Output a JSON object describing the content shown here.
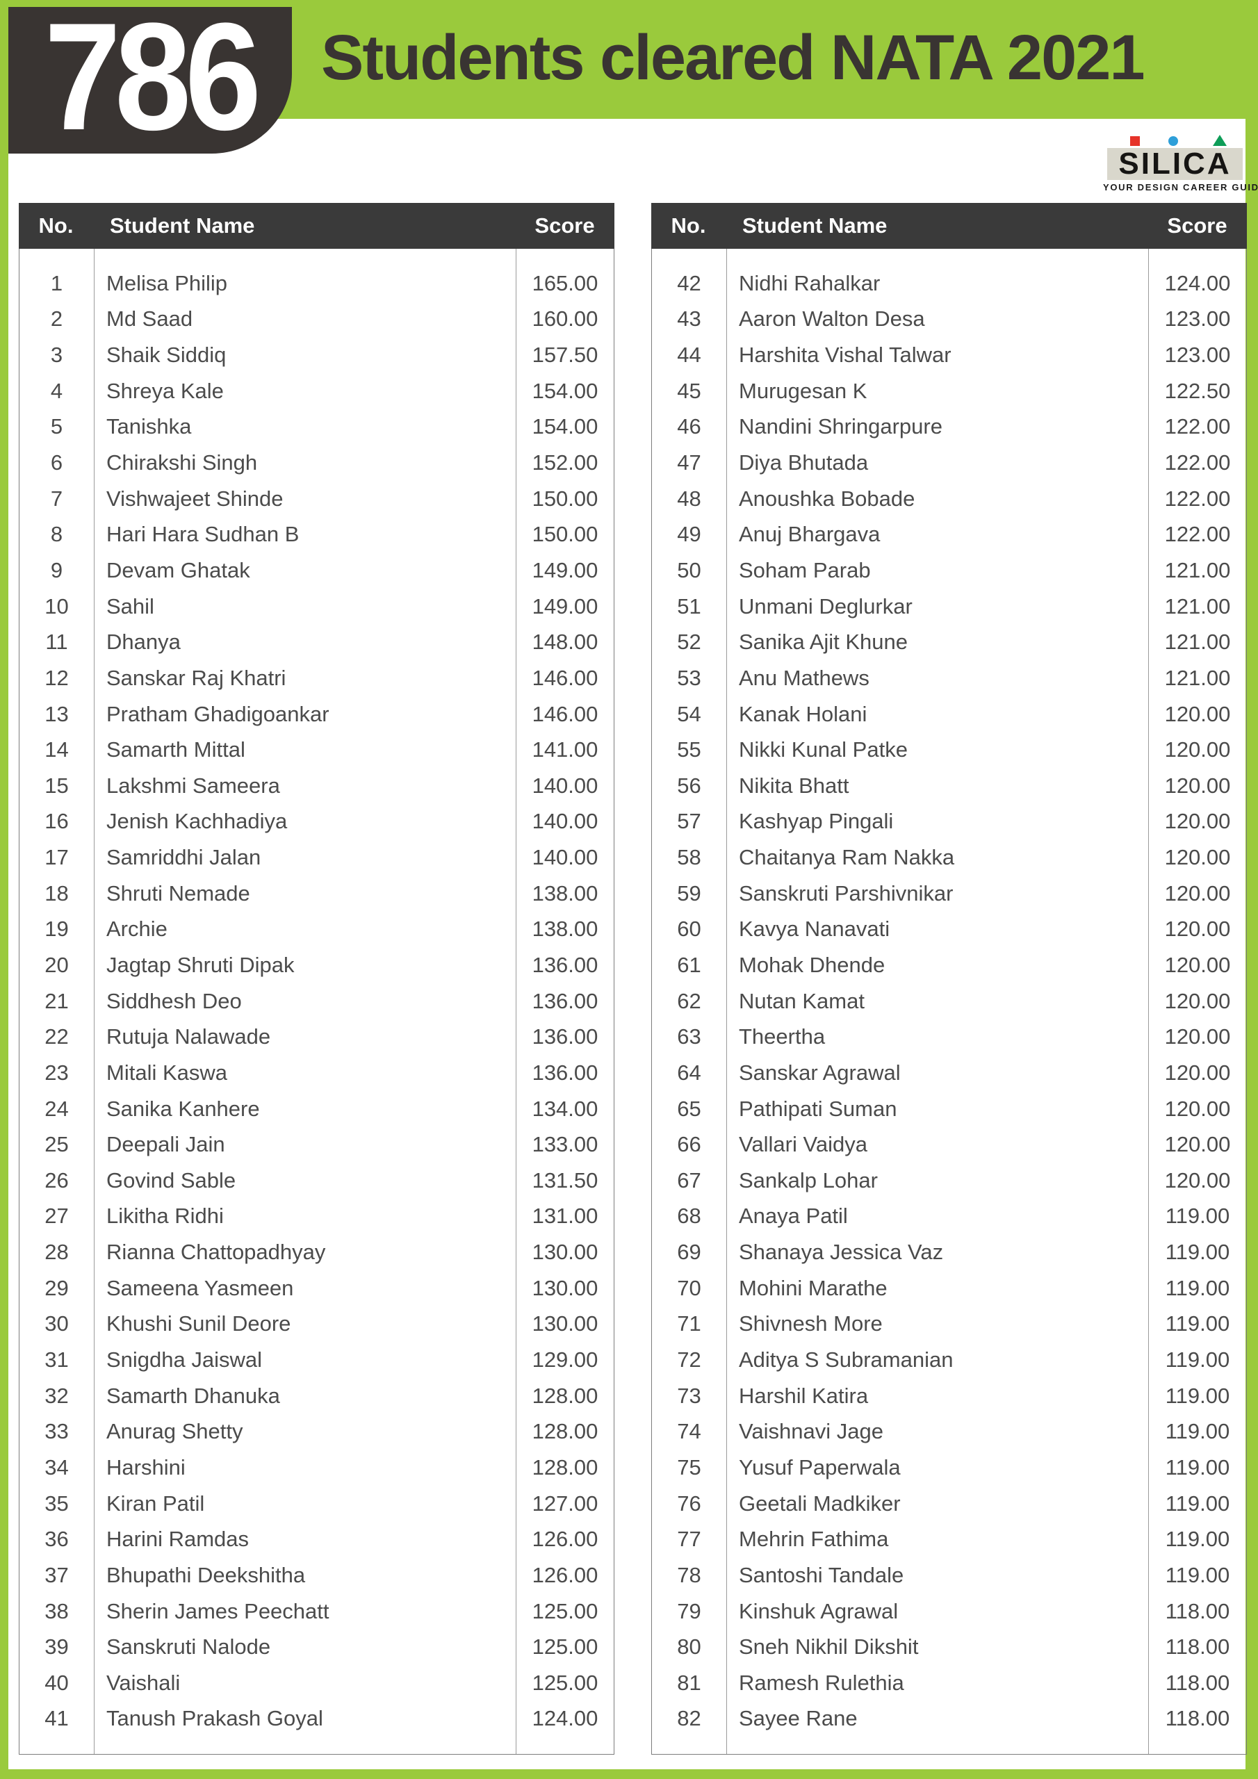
{
  "header": {
    "count": "786",
    "title": "Students cleared NATA 2021"
  },
  "logo": {
    "brand": "SILICA",
    "tagline": "YOUR DESIGN CAREER GUIDE"
  },
  "columns": {
    "no": "No.",
    "name": "Student Name",
    "score": "Score"
  },
  "colors": {
    "banner_green": "#9ACA3C",
    "badge_dark": "#393432",
    "table_header": "#3A3A3A",
    "logo_red": "#E63329",
    "logo_blue": "#2E9FD9",
    "logo_green": "#0E9D58"
  },
  "left_rows": [
    {
      "no": "1",
      "name": "Melisa Philip",
      "score": "165.00"
    },
    {
      "no": "2",
      "name": "Md Saad",
      "score": "160.00"
    },
    {
      "no": "3",
      "name": "Shaik Siddiq",
      "score": "157.50"
    },
    {
      "no": "4",
      "name": "Shreya Kale",
      "score": "154.00"
    },
    {
      "no": "5",
      "name": "Tanishka",
      "score": "154.00"
    },
    {
      "no": "6",
      "name": "Chirakshi Singh",
      "score": "152.00"
    },
    {
      "no": "7",
      "name": "Vishwajeet Shinde",
      "score": "150.00"
    },
    {
      "no": "8",
      "name": "Hari Hara Sudhan B",
      "score": "150.00"
    },
    {
      "no": "9",
      "name": "Devam Ghatak",
      "score": "149.00"
    },
    {
      "no": "10",
      "name": "Sahil",
      "score": "149.00"
    },
    {
      "no": "11",
      "name": "Dhanya",
      "score": "148.00"
    },
    {
      "no": "12",
      "name": "Sanskar Raj Khatri",
      "score": "146.00"
    },
    {
      "no": "13",
      "name": "Pratham Ghadigoankar",
      "score": "146.00"
    },
    {
      "no": "14",
      "name": "Samarth Mittal",
      "score": "141.00"
    },
    {
      "no": "15",
      "name": "Lakshmi Sameera",
      "score": "140.00"
    },
    {
      "no": "16",
      "name": "Jenish Kachhadiya",
      "score": "140.00"
    },
    {
      "no": "17",
      "name": "Samriddhi Jalan",
      "score": "140.00"
    },
    {
      "no": "18",
      "name": "Shruti Nemade",
      "score": "138.00"
    },
    {
      "no": "19",
      "name": "Archie",
      "score": "138.00"
    },
    {
      "no": "20",
      "name": "Jagtap Shruti Dipak",
      "score": "136.00"
    },
    {
      "no": "21",
      "name": "Siddhesh Deo",
      "score": "136.00"
    },
    {
      "no": "22",
      "name": "Rutuja Nalawade",
      "score": "136.00"
    },
    {
      "no": "23",
      "name": "Mitali Kaswa",
      "score": "136.00"
    },
    {
      "no": "24",
      "name": "Sanika Kanhere",
      "score": "134.00"
    },
    {
      "no": "25",
      "name": "Deepali Jain",
      "score": "133.00"
    },
    {
      "no": "26",
      "name": "Govind Sable",
      "score": "131.50"
    },
    {
      "no": "27",
      "name": "Likitha Ridhi",
      "score": "131.00"
    },
    {
      "no": "28",
      "name": "Rianna Chattopadhyay",
      "score": "130.00"
    },
    {
      "no": "29",
      "name": "Sameena Yasmeen",
      "score": "130.00"
    },
    {
      "no": "30",
      "name": "Khushi Sunil Deore",
      "score": "130.00"
    },
    {
      "no": "31",
      "name": "Snigdha Jaiswal",
      "score": "129.00"
    },
    {
      "no": "32",
      "name": "Samarth Dhanuka",
      "score": "128.00"
    },
    {
      "no": "33",
      "name": "Anurag Shetty",
      "score": "128.00"
    },
    {
      "no": "34",
      "name": "Harshini",
      "score": "128.00"
    },
    {
      "no": "35",
      "name": "Kiran Patil",
      "score": "127.00"
    },
    {
      "no": "36",
      "name": "Harini Ramdas",
      "score": "126.00"
    },
    {
      "no": "37",
      "name": "Bhupathi Deekshitha",
      "score": "126.00"
    },
    {
      "no": "38",
      "name": "Sherin James Peechatt",
      "score": "125.00"
    },
    {
      "no": "39",
      "name": "Sanskruti Nalode",
      "score": "125.00"
    },
    {
      "no": "40",
      "name": "Vaishali",
      "score": "125.00"
    },
    {
      "no": "41",
      "name": "Tanush Prakash Goyal",
      "score": "124.00"
    }
  ],
  "right_rows": [
    {
      "no": "42",
      "name": "Nidhi Rahalkar",
      "score": "124.00"
    },
    {
      "no": "43",
      "name": "Aaron Walton Desa",
      "score": "123.00"
    },
    {
      "no": "44",
      "name": "Harshita Vishal Talwar",
      "score": "123.00"
    },
    {
      "no": "45",
      "name": "Murugesan K",
      "score": "122.50"
    },
    {
      "no": "46",
      "name": "Nandini Shringarpure",
      "score": "122.00"
    },
    {
      "no": "47",
      "name": "Diya Bhutada",
      "score": "122.00"
    },
    {
      "no": "48",
      "name": "Anoushka Bobade",
      "score": "122.00"
    },
    {
      "no": "49",
      "name": "Anuj Bhargava",
      "score": "122.00"
    },
    {
      "no": "50",
      "name": "Soham Parab",
      "score": "121.00"
    },
    {
      "no": "51",
      "name": "Unmani Deglurkar",
      "score": "121.00"
    },
    {
      "no": "52",
      "name": "Sanika Ajit Khune",
      "score": "121.00"
    },
    {
      "no": "53",
      "name": "Anu Mathews",
      "score": "121.00"
    },
    {
      "no": "54",
      "name": "Kanak Holani",
      "score": "120.00"
    },
    {
      "no": "55",
      "name": "Nikki Kunal Patke",
      "score": "120.00"
    },
    {
      "no": "56",
      "name": "Nikita Bhatt",
      "score": "120.00"
    },
    {
      "no": "57",
      "name": "Kashyap Pingali",
      "score": "120.00"
    },
    {
      "no": "58",
      "name": "Chaitanya Ram Nakka",
      "score": "120.00"
    },
    {
      "no": "59",
      "name": "Sanskruti Parshivnikar",
      "score": "120.00"
    },
    {
      "no": "60",
      "name": "Kavya Nanavati",
      "score": "120.00"
    },
    {
      "no": "61",
      "name": "Mohak Dhende",
      "score": "120.00"
    },
    {
      "no": "62",
      "name": "Nutan Kamat",
      "score": "120.00"
    },
    {
      "no": "63",
      "name": "Theertha",
      "score": "120.00"
    },
    {
      "no": "64",
      "name": "Sanskar Agrawal",
      "score": "120.00"
    },
    {
      "no": "65",
      "name": "Pathipati Suman",
      "score": "120.00"
    },
    {
      "no": "66",
      "name": "Vallari Vaidya",
      "score": "120.00"
    },
    {
      "no": "67",
      "name": "Sankalp Lohar",
      "score": "120.00"
    },
    {
      "no": "68",
      "name": "Anaya Patil",
      "score": "119.00"
    },
    {
      "no": "69",
      "name": "Shanaya Jessica Vaz",
      "score": "119.00"
    },
    {
      "no": "70",
      "name": "Mohini Marathe",
      "score": "119.00"
    },
    {
      "no": "71",
      "name": "Shivnesh More",
      "score": "119.00"
    },
    {
      "no": "72",
      "name": "Aditya S Subramanian",
      "score": "119.00"
    },
    {
      "no": "73",
      "name": "Harshil Katira",
      "score": "119.00"
    },
    {
      "no": "74",
      "name": "Vaishnavi Jage",
      "score": "119.00"
    },
    {
      "no": "75",
      "name": "Yusuf Paperwala",
      "score": "119.00"
    },
    {
      "no": "76",
      "name": "Geetali Madkiker",
      "score": "119.00"
    },
    {
      "no": "77",
      "name": "Mehrin Fathima",
      "score": "119.00"
    },
    {
      "no": "78",
      "name": "Santoshi Tandale",
      "score": "119.00"
    },
    {
      "no": "79",
      "name": "Kinshuk Agrawal",
      "score": "118.00"
    },
    {
      "no": "80",
      "name": "Sneh Nikhil Dikshit",
      "score": "118.00"
    },
    {
      "no": "81",
      "name": "Ramesh Rulethia",
      "score": "118.00"
    },
    {
      "no": "82",
      "name": "Sayee Rane",
      "score": "118.00"
    }
  ]
}
